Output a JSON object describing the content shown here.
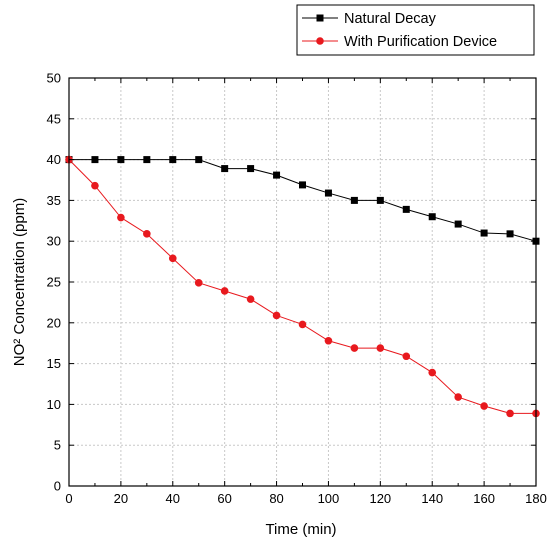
{
  "chart_data": {
    "type": "line",
    "xlabel": "Time (min)",
    "ylabel": "NO² Concentration (ppm)",
    "xlim": [
      0,
      180
    ],
    "ylim": [
      0,
      50
    ],
    "x_ticks": [
      0,
      20,
      40,
      60,
      80,
      100,
      120,
      140,
      160,
      180
    ],
    "y_ticks": [
      0,
      5,
      10,
      15,
      20,
      25,
      30,
      35,
      40,
      45,
      50
    ],
    "grid": true,
    "legend_position": "top-right",
    "x": [
      0,
      10,
      20,
      30,
      40,
      50,
      60,
      70,
      80,
      90,
      100,
      110,
      120,
      130,
      140,
      150,
      160,
      170,
      180
    ],
    "series": [
      {
        "name": "Natural Decay",
        "marker": "square",
        "color": "#000000",
        "values": [
          40,
          40,
          40,
          40,
          40,
          40,
          38.9,
          38.9,
          38.1,
          36.9,
          35.9,
          35.0,
          35.0,
          33.9,
          33.0,
          32.1,
          31.0,
          30.9,
          30.0
        ]
      },
      {
        "name": "With Purification Device",
        "marker": "circle",
        "color": "#e8191e",
        "values": [
          40,
          36.8,
          32.9,
          30.9,
          27.9,
          24.9,
          23.9,
          22.9,
          20.9,
          19.8,
          17.8,
          16.9,
          16.9,
          15.9,
          13.9,
          10.9,
          9.8,
          8.9,
          8.9
        ]
      }
    ]
  }
}
